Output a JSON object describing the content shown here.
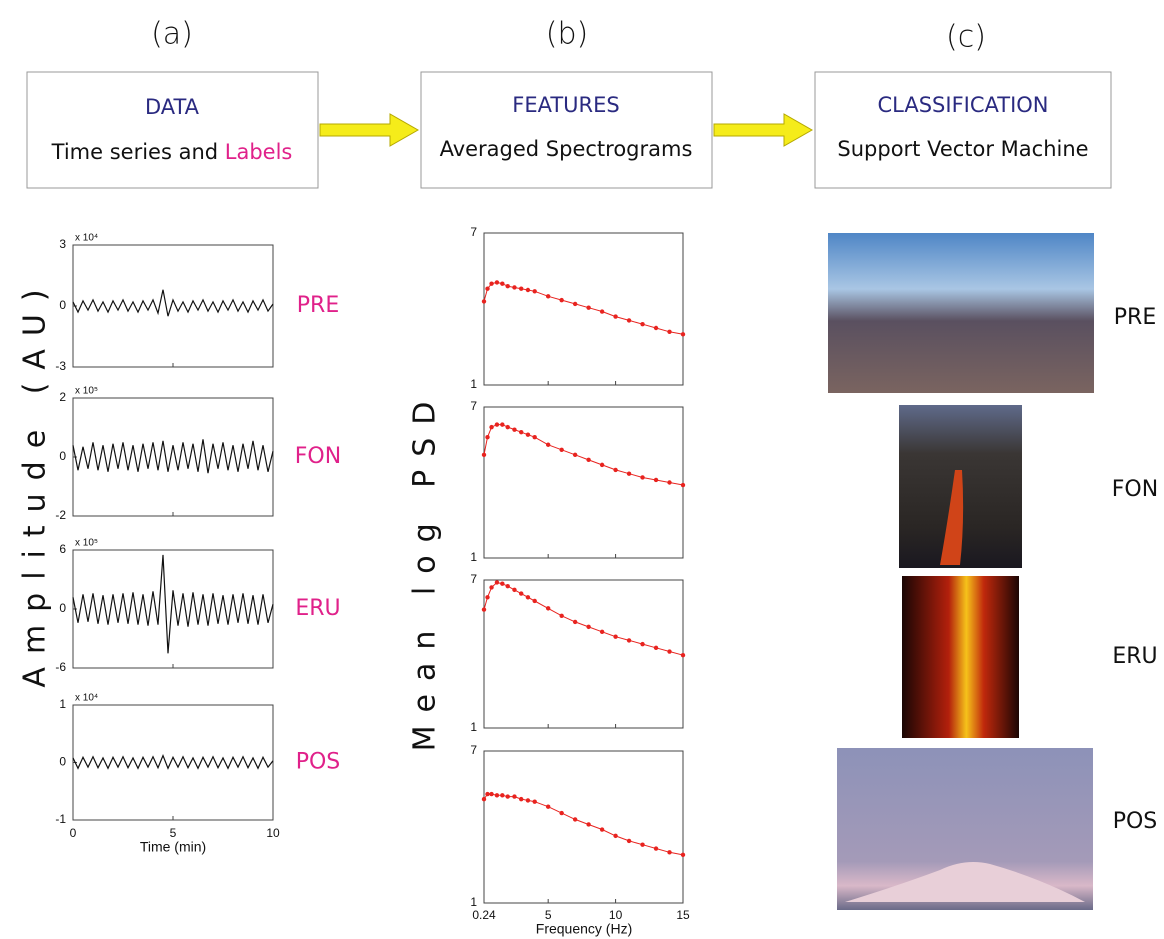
{
  "panel_labels": [
    "(a)",
    "(b)",
    "(c)"
  ],
  "boxes": [
    {
      "title": "DATA",
      "subtitle": "Time series and ",
      "highlight": "Labels"
    },
    {
      "title": "FEATURES",
      "subtitle": "Averaged Spectrograms"
    },
    {
      "title": "CLASSIFICATION",
      "subtitle": "Support Vector Machine"
    }
  ],
  "time_series": {
    "type": "line",
    "ylabel": "Amplitude (AU)",
    "xlabel": "Time (min)",
    "xlim": [
      0,
      10
    ],
    "xticks": [
      0,
      5,
      10
    ],
    "color": "#111111",
    "x": [
      0,
      0.25,
      0.5,
      0.75,
      1,
      1.25,
      1.5,
      1.75,
      2,
      2.25,
      2.5,
      2.75,
      3,
      3.25,
      3.5,
      3.75,
      4,
      4.25,
      4.5,
      4.75,
      5,
      5.25,
      5.5,
      5.75,
      6,
      6.25,
      6.5,
      6.75,
      7,
      7.25,
      7.5,
      7.75,
      8,
      8.25,
      8.5,
      8.75,
      9,
      9.25,
      9.5,
      9.75,
      10
    ],
    "charts": [
      {
        "label": "PRE",
        "scale_label": "x 10⁴",
        "ylim": [
          -3,
          3
        ],
        "yticks": [
          -3,
          0,
          3
        ],
        "values": [
          0.2,
          -0.3,
          0.25,
          -0.2,
          0.3,
          -0.25,
          0.2,
          -0.3,
          0.25,
          -0.2,
          0.3,
          -0.25,
          0.2,
          -0.3,
          0.25,
          -0.2,
          0.3,
          -0.35,
          0.8,
          -0.5,
          0.3,
          -0.25,
          0.2,
          -0.3,
          0.25,
          -0.2,
          0.3,
          -0.25,
          0.2,
          -0.3,
          0.25,
          -0.2,
          0.3,
          -0.25,
          0.2,
          -0.3,
          0.25,
          -0.2,
          0.3,
          -0.25,
          0.1
        ]
      },
      {
        "label": "FON",
        "scale_label": "x 10⁵",
        "ylim": [
          -2,
          2
        ],
        "yticks": [
          -2,
          0,
          2
        ],
        "values": [
          0.4,
          -0.45,
          0.35,
          -0.4,
          0.5,
          -0.45,
          0.4,
          -0.5,
          0.45,
          -0.4,
          0.5,
          -0.45,
          0.4,
          -0.5,
          0.45,
          -0.4,
          0.5,
          -0.45,
          0.55,
          -0.5,
          0.4,
          -0.45,
          0.5,
          -0.4,
          0.45,
          -0.5,
          0.6,
          -0.55,
          0.45,
          -0.4,
          0.5,
          -0.45,
          0.4,
          -0.5,
          0.45,
          -0.4,
          0.55,
          -0.45,
          0.4,
          -0.5,
          0.2
        ]
      },
      {
        "label": "ERU",
        "scale_label": "x 10⁵",
        "ylim": [
          -6,
          6
        ],
        "yticks": [
          -6,
          0,
          6
        ],
        "values": [
          1.2,
          -1.4,
          1.5,
          -1.3,
          1.6,
          -1.5,
          1.4,
          -1.6,
          1.5,
          -1.4,
          1.6,
          -1.5,
          1.7,
          -1.6,
          1.5,
          -1.7,
          1.8,
          -1.6,
          5.5,
          -4.5,
          1.9,
          -1.7,
          1.6,
          -1.8,
          1.7,
          -1.6,
          1.5,
          -1.7,
          1.6,
          -1.5,
          1.4,
          -1.6,
          1.5,
          -1.4,
          1.6,
          -1.5,
          1.4,
          -1.6,
          1.5,
          -1.4,
          0.5
        ]
      },
      {
        "label": "POS",
        "scale_label": "x 10⁴",
        "ylim": [
          -1,
          1
        ],
        "yticks": [
          -1,
          0,
          1
        ],
        "values": [
          0.08,
          -0.1,
          0.09,
          -0.08,
          0.1,
          -0.09,
          0.08,
          -0.1,
          0.09,
          -0.08,
          0.1,
          -0.09,
          0.08,
          -0.1,
          0.09,
          -0.08,
          0.1,
          -0.09,
          0.12,
          -0.1,
          0.09,
          -0.08,
          0.1,
          -0.09,
          0.08,
          -0.1,
          0.09,
          -0.08,
          0.1,
          -0.09,
          0.08,
          -0.1,
          0.09,
          -0.08,
          0.1,
          -0.09,
          0.08,
          -0.1,
          0.09,
          -0.08,
          0.03
        ]
      }
    ]
  },
  "spectra": {
    "type": "line",
    "ylabel": "Mean log PSD",
    "xlabel": "Frequency (Hz)",
    "xlim": [
      0.24,
      15
    ],
    "xticks": [
      0.24,
      5,
      10,
      15
    ],
    "ylim": [
      1,
      7
    ],
    "yticks": [
      1,
      7
    ],
    "color": "#e8231f",
    "x": [
      0.24,
      0.5,
      0.8,
      1.2,
      1.6,
      2,
      2.5,
      3,
      3.5,
      4,
      5,
      6,
      7,
      8,
      9,
      10,
      11,
      12,
      13,
      14,
      15
    ],
    "series": [
      {
        "values": [
          4.3,
          4.8,
          5.0,
          5.05,
          5.0,
          4.9,
          4.85,
          4.8,
          4.75,
          4.7,
          4.5,
          4.35,
          4.2,
          4.05,
          3.9,
          3.7,
          3.55,
          3.4,
          3.25,
          3.1,
          3.0
        ]
      },
      {
        "values": [
          5.1,
          5.8,
          6.2,
          6.3,
          6.3,
          6.2,
          6.1,
          6.0,
          5.9,
          5.8,
          5.5,
          5.3,
          5.1,
          4.9,
          4.7,
          4.5,
          4.35,
          4.2,
          4.1,
          4.0,
          3.9
        ]
      },
      {
        "values": [
          5.8,
          6.3,
          6.7,
          6.9,
          6.85,
          6.75,
          6.6,
          6.45,
          6.3,
          6.15,
          5.85,
          5.55,
          5.3,
          5.1,
          4.9,
          4.7,
          4.55,
          4.4,
          4.25,
          4.1,
          3.95
        ]
      },
      {
        "values": [
          5.1,
          5.3,
          5.3,
          5.25,
          5.25,
          5.2,
          5.2,
          5.1,
          5.05,
          5.0,
          4.8,
          4.55,
          4.3,
          4.1,
          3.9,
          3.65,
          3.45,
          3.3,
          3.15,
          3.0,
          2.9
        ]
      }
    ]
  },
  "classes": {
    "labels": [
      "PRE",
      "FON",
      "ERU",
      "POS"
    ]
  }
}
